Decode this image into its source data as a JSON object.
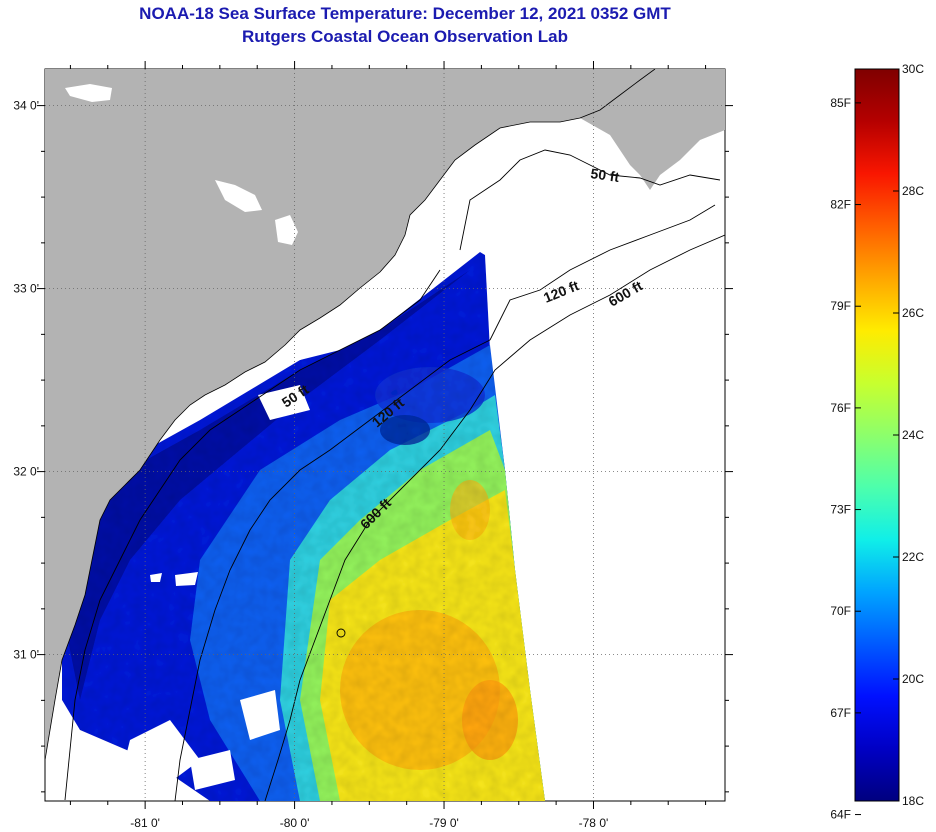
{
  "title": "NOAA-18 Sea Surface Temperature:  December 12, 2021 0352 GMT",
  "subtitle": "Rutgers Coastal Ocean Observation Lab",
  "colors": {
    "land": "#b3b3b3",
    "background": "#ffffff",
    "title": "#1b1bb0",
    "colormap": [
      "#00007f",
      "#0000c4",
      "#0010ff",
      "#005aff",
      "#00a4ff",
      "#10efe8",
      "#4dffac",
      "#8dff6b",
      "#c8ff2e",
      "#ffeb00",
      "#ffa600",
      "#ff5e00",
      "#f91600",
      "#b50000",
      "#7f0000"
    ]
  },
  "axes": {
    "x_ticks": [
      {
        "value": -81,
        "label": "-81 0'"
      },
      {
        "value": -80,
        "label": "-80 0'"
      },
      {
        "value": -79,
        "label": "-79 0'"
      },
      {
        "value": -78,
        "label": "-78 0'"
      }
    ],
    "y_ticks": [
      {
        "value": 34,
        "label": "34 0'"
      },
      {
        "value": 33,
        "label": "33 0'"
      },
      {
        "value": 32,
        "label": "32 0'"
      },
      {
        "value": 31,
        "label": "31 0'"
      }
    ],
    "lon_range": [
      -81.67,
      -77.12
    ],
    "lat_range": [
      30.2,
      34.2
    ],
    "grid": "dotted at whole degrees"
  },
  "contours": [
    {
      "label": "50 ft"
    },
    {
      "label": "120 ft"
    },
    {
      "label": "600 ft"
    },
    {
      "label": "50 ft"
    },
    {
      "label": "120 ft"
    },
    {
      "label": "600 ft"
    }
  ],
  "colorbar": {
    "fahrenheit_labels": [
      "85F",
      "82F",
      "79F",
      "76F",
      "73F",
      "70F",
      "67F",
      "64F"
    ],
    "celsius_labels": [
      "30C",
      "28C",
      "26C",
      "24C",
      "22C",
      "20C",
      "18C"
    ],
    "range_c": [
      18,
      30
    ]
  }
}
